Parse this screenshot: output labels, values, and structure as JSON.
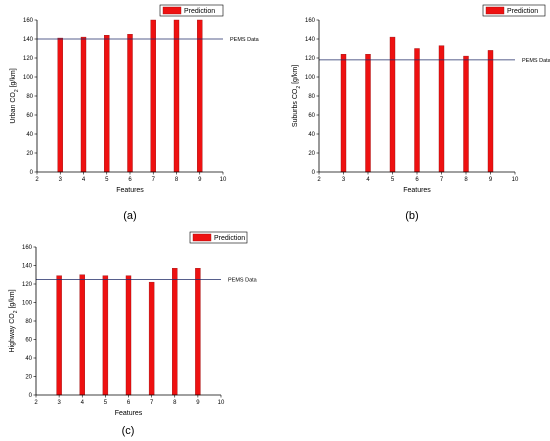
{
  "figure": {
    "panel_labels": [
      "(a)",
      "(b)",
      "(c)"
    ],
    "colors": {
      "bar": "#ee1111",
      "bar_edge": "#991111",
      "reference_line": "#1f2a66"
    }
  },
  "chart_data": [
    {
      "type": "bar",
      "xlabel": "Features",
      "ylabel": "Urban CO₂ [g/km]",
      "ylabel_main": "Urban CO",
      "ylabel_sub": "2",
      "ylabel_unit": " [g/km]",
      "xlim": [
        2,
        10
      ],
      "ylim": [
        0,
        160
      ],
      "xticks": [
        2,
        3,
        4,
        5,
        6,
        7,
        8,
        9,
        10
      ],
      "yticks": [
        0,
        20,
        40,
        60,
        80,
        100,
        120,
        140,
        160
      ],
      "x": [
        3,
        4,
        5,
        6,
        7,
        8,
        9
      ],
      "series": [
        {
          "name": "Prediction",
          "values": [
            141,
            142,
            144,
            145,
            160,
            160,
            160
          ]
        }
      ],
      "reference_line": {
        "label": "PEMS Data",
        "value": 140
      },
      "legend_position": "top-right",
      "grid": false
    },
    {
      "type": "bar",
      "xlabel": "Features",
      "ylabel": "Suburbs CO₂ [g/km]",
      "ylabel_main": "Suburbs CO",
      "ylabel_sub": "2",
      "ylabel_unit": " [g/km]",
      "xlim": [
        2,
        10
      ],
      "ylim": [
        0,
        160
      ],
      "xticks": [
        2,
        3,
        4,
        5,
        6,
        7,
        8,
        9,
        10
      ],
      "yticks": [
        0,
        20,
        40,
        60,
        80,
        100,
        120,
        140,
        160
      ],
      "x": [
        3,
        4,
        5,
        6,
        7,
        8,
        9
      ],
      "series": [
        {
          "name": "Prediction",
          "values": [
            124,
            124,
            142,
            130,
            133,
            122,
            128
          ]
        }
      ],
      "reference_line": {
        "label": "PEMS Data",
        "value": 118
      },
      "legend_position": "top-right",
      "grid": false
    },
    {
      "type": "bar",
      "xlabel": "Features",
      "ylabel": "Highway CO₂ [g/km]",
      "ylabel_main": "Highway CO",
      "ylabel_sub": "2",
      "ylabel_unit": " [g/km]",
      "xlim": [
        2,
        10
      ],
      "ylim": [
        0,
        160
      ],
      "xticks": [
        2,
        3,
        4,
        5,
        6,
        7,
        8,
        9,
        10
      ],
      "yticks": [
        0,
        20,
        40,
        60,
        80,
        100,
        120,
        140,
        160
      ],
      "x": [
        3,
        4,
        5,
        6,
        7,
        8,
        9
      ],
      "series": [
        {
          "name": "Prediction",
          "values": [
            129,
            130,
            129,
            129,
            122,
            137,
            137
          ]
        }
      ],
      "reference_line": {
        "label": "PEMS Data",
        "value": 125
      },
      "legend_position": "top-right",
      "grid": false
    }
  ]
}
